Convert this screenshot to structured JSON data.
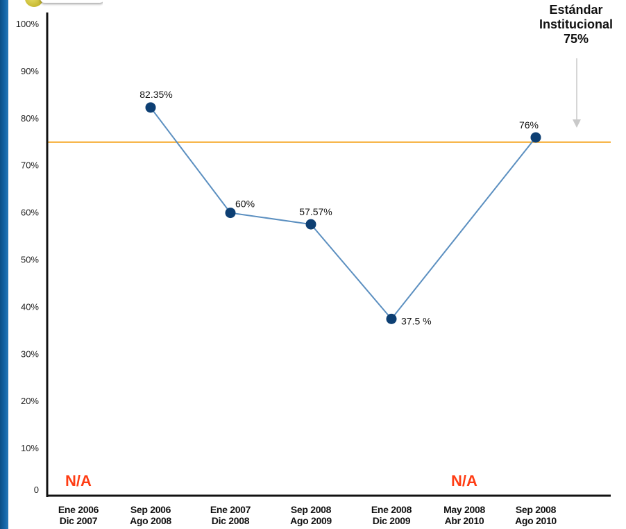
{
  "callout": {
    "line1": "Estándar",
    "line2": "Institucional",
    "line3": "75%"
  },
  "colors": {
    "line": "#5b8fc0",
    "marker": "#0d3f73",
    "standard": "#f5a623",
    "na": "#ff3d14",
    "axis": "#111111"
  },
  "chart_data": {
    "type": "line",
    "categories": [
      [
        "Ene 2006",
        "Dic 2007"
      ],
      [
        "Sep 2006",
        "Ago 2008"
      ],
      [
        "Ene 2007",
        "Dic 2008"
      ],
      [
        "Sep 2008",
        "Ago 2009"
      ],
      [
        "Ene 2008",
        "Dic 2009"
      ],
      [
        "May 2008",
        "Abr 2010"
      ],
      [
        "Sep 2008",
        "Ago 2010"
      ]
    ],
    "values": [
      null,
      82.35,
      60,
      57.57,
      37.5,
      null,
      76
    ],
    "data_labels": [
      "N/A",
      "82.35%",
      "60%",
      "57.57%",
      "37.5 %",
      "N/A",
      "76%"
    ],
    "ylim": [
      0,
      100
    ],
    "yticks": [
      "0",
      "10%",
      "20%",
      "30%",
      "40%",
      "50%",
      "60%",
      "70%",
      "80%",
      "90%",
      "100%"
    ],
    "reference_line": {
      "value": 75,
      "label": "Estándar Institucional 75%"
    },
    "grid": false
  }
}
